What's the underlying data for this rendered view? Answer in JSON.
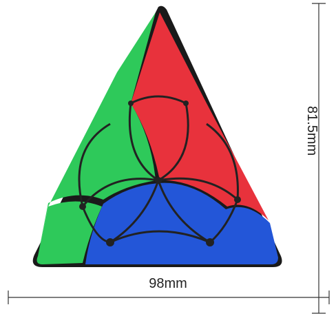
{
  "dimensions": {
    "width": "98mm",
    "height": "81.5mm"
  }
}
